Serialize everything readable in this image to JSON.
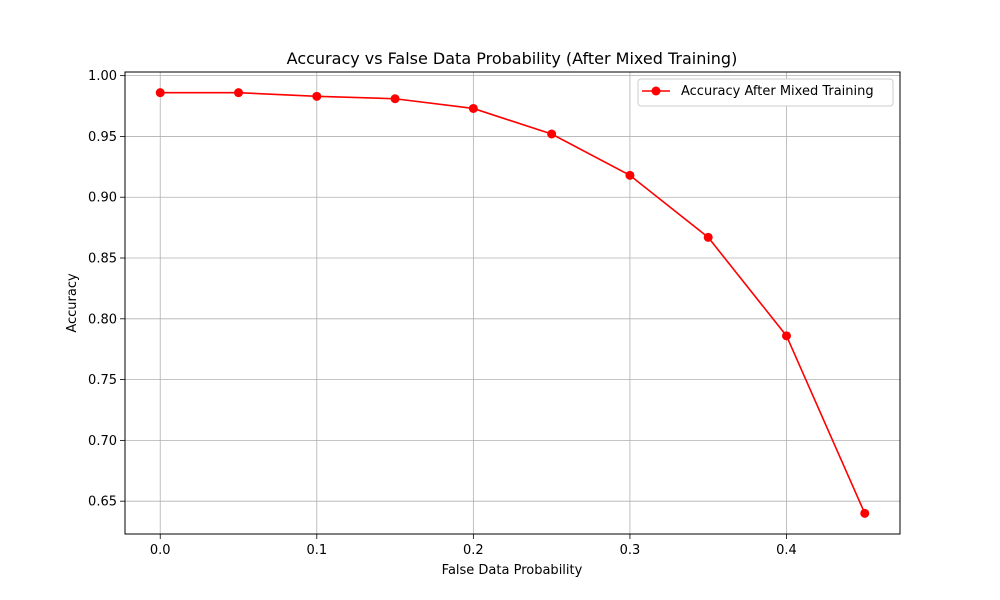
{
  "chart_data": {
    "type": "line",
    "title": "Accuracy vs False Data Probability (After Mixed Training)",
    "xlabel": "False Data Probability",
    "ylabel": "Accuracy",
    "xlim": [
      -0.0225,
      0.4725
    ],
    "ylim": [
      0.623,
      1.003
    ],
    "x_ticks": [
      0.0,
      0.1,
      0.2,
      0.3,
      0.4
    ],
    "x_tick_labels": [
      "0.0",
      "0.1",
      "0.2",
      "0.3",
      "0.4"
    ],
    "y_ticks": [
      0.65,
      0.7,
      0.75,
      0.8,
      0.85,
      0.9,
      0.95,
      1.0
    ],
    "y_tick_labels": [
      "0.65",
      "0.70",
      "0.75",
      "0.80",
      "0.85",
      "0.90",
      "0.95",
      "1.00"
    ],
    "grid": true,
    "legend_position": "top-right",
    "series": [
      {
        "name": "Accuracy After Mixed Training",
        "color": "#ff0000",
        "marker": "circle",
        "x": [
          0.0,
          0.05,
          0.1,
          0.15,
          0.2,
          0.25,
          0.3,
          0.35,
          0.4,
          0.45
        ],
        "y": [
          0.986,
          0.986,
          0.983,
          0.981,
          0.973,
          0.952,
          0.918,
          0.867,
          0.786,
          0.64
        ]
      }
    ]
  }
}
